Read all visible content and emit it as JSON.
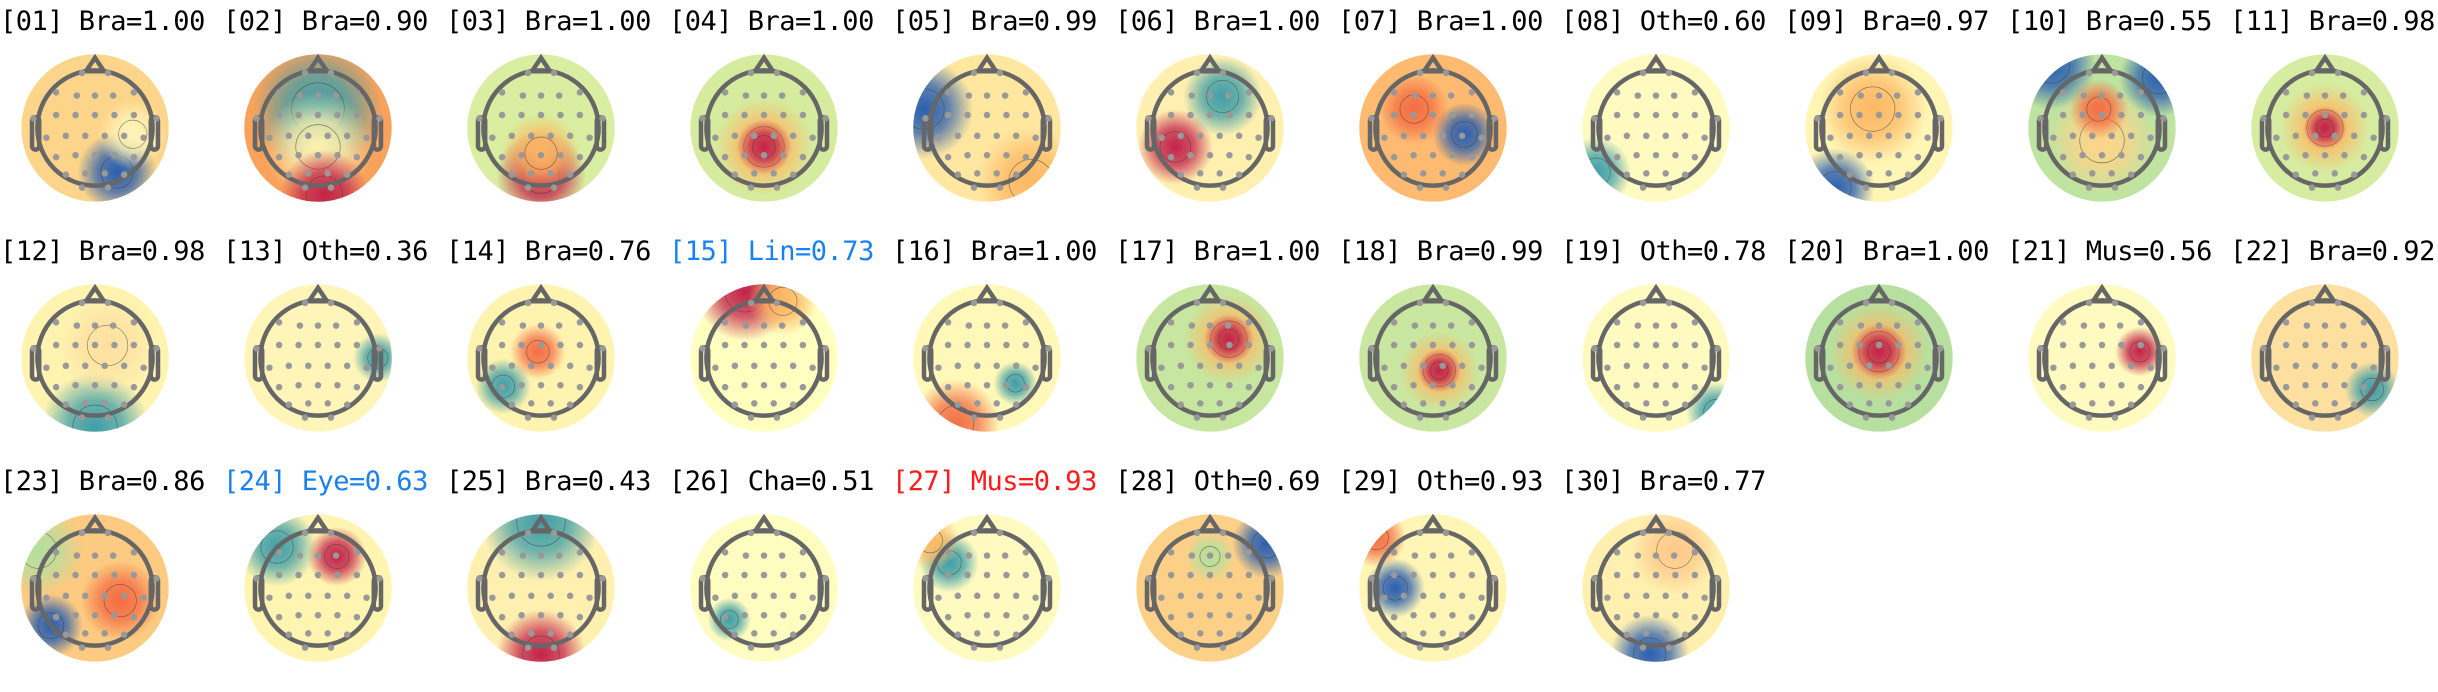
{
  "colors": {
    "normal": "#000000",
    "blue": "#1a82f0",
    "red": "#ff1a1a",
    "head_outline": "#666666",
    "electrode": "#999999"
  },
  "components": [
    {
      "label": "[01] Bra=1.00",
      "color": "normal"
    },
    {
      "label": "[02] Bra=0.90",
      "color": "normal"
    },
    {
      "label": "[03] Bra=1.00",
      "color": "normal"
    },
    {
      "label": "[04] Bra=1.00",
      "color": "normal"
    },
    {
      "label": "[05] Bra=0.99",
      "color": "normal"
    },
    {
      "label": "[06] Bra=1.00",
      "color": "normal"
    },
    {
      "label": "[07] Bra=1.00",
      "color": "normal"
    },
    {
      "label": "[08] Oth=0.60",
      "color": "normal"
    },
    {
      "label": "[09] Bra=0.97",
      "color": "normal"
    },
    {
      "label": "[10] Bra=0.55",
      "color": "normal"
    },
    {
      "label": "[11] Bra=0.98",
      "color": "normal"
    },
    {
      "label": "[12] Bra=0.98",
      "color": "normal"
    },
    {
      "label": "[13] Oth=0.36",
      "color": "normal"
    },
    {
      "label": "[14] Bra=0.76",
      "color": "normal"
    },
    {
      "label": "[15] Lin=0.73",
      "color": "blue"
    },
    {
      "label": "[16] Bra=1.00",
      "color": "normal"
    },
    {
      "label": "[17] Bra=1.00",
      "color": "normal"
    },
    {
      "label": "[18] Bra=0.99",
      "color": "normal"
    },
    {
      "label": "[19] Oth=0.78",
      "color": "normal"
    },
    {
      "label": "[20] Bra=1.00",
      "color": "normal"
    },
    {
      "label": "[21] Mus=0.56",
      "color": "normal"
    },
    {
      "label": "[22] Bra=0.92",
      "color": "normal"
    },
    {
      "label": "[23] Bra=0.86",
      "color": "normal"
    },
    {
      "label": "[24] Eye=0.63",
      "color": "blue"
    },
    {
      "label": "[25] Bra=0.43",
      "color": "normal"
    },
    {
      "label": "[26] Cha=0.51",
      "color": "normal"
    },
    {
      "label": "[27] Mus=0.93",
      "color": "red"
    },
    {
      "label": "[28] Oth=0.69",
      "color": "normal"
    },
    {
      "label": "[29] Oth=0.93",
      "color": "normal"
    },
    {
      "label": "[30] Bra=0.77",
      "color": "normal"
    }
  ]
}
